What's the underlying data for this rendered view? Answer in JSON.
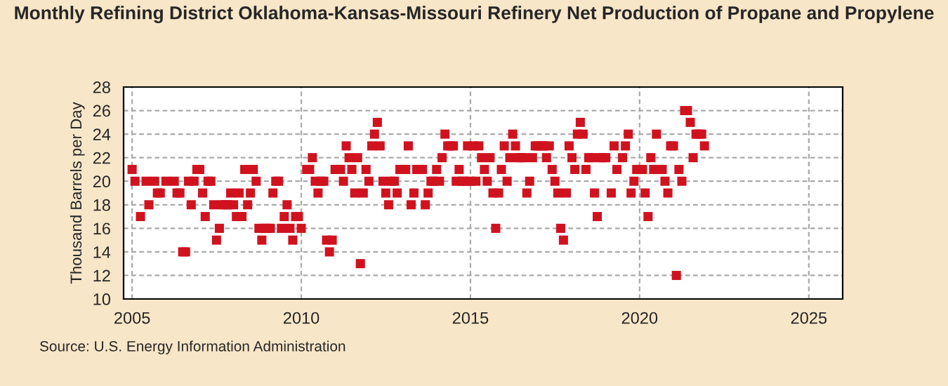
{
  "chart_data": {
    "type": "scatter",
    "title": "Monthly Refining District Oklahoma-Kansas-Missouri Refinery Net Production of Propane and Propylene",
    "ylabel": "Thousand Barrels per Day",
    "annotations": [
      "Source: U.S. Energy Information Administration"
    ],
    "x": [
      "2005-01",
      "2005-02",
      "2005-04",
      "2005-06",
      "2005-07",
      "2005-09",
      "2005-10",
      "2005-11",
      "2006-01",
      "2006-04",
      "2006-05",
      "2006-06",
      "2006-07",
      "2006-08",
      "2006-09",
      "2006-10",
      "2006-11",
      "2006-12",
      "2007-01",
      "2007-02",
      "2007-03",
      "2007-04",
      "2007-05",
      "2007-06",
      "2007-07",
      "2007-08",
      "2007-09",
      "2007-10",
      "2007-11",
      "2007-12",
      "2008-01",
      "2008-02",
      "2008-03",
      "2008-04",
      "2008-05",
      "2008-06",
      "2008-07",
      "2008-08",
      "2008-09",
      "2008-10",
      "2008-11",
      "2008-12",
      "2009-01",
      "2009-02",
      "2009-03",
      "2009-04",
      "2009-05",
      "2009-06",
      "2009-07",
      "2009-08",
      "2009-09",
      "2009-10",
      "2009-11",
      "2009-12",
      "2010-01",
      "2010-03",
      "2010-04",
      "2010-05",
      "2010-06",
      "2010-07",
      "2010-08",
      "2010-09",
      "2010-10",
      "2010-11",
      "2010-12",
      "2011-01",
      "2011-02",
      "2011-03",
      "2011-04",
      "2011-05",
      "2011-06",
      "2011-07",
      "2011-08",
      "2011-09",
      "2011-10",
      "2011-11",
      "2011-12",
      "2012-01",
      "2012-02",
      "2012-03",
      "2012-04",
      "2012-05",
      "2012-06",
      "2012-07",
      "2012-08",
      "2012-09",
      "2012-10",
      "2012-11",
      "2012-12",
      "2013-01",
      "2013-02",
      "2013-03",
      "2013-04",
      "2013-05",
      "2013-06",
      "2013-07",
      "2013-08",
      "2013-09",
      "2013-10",
      "2013-11",
      "2013-12",
      "2014-01",
      "2014-02",
      "2014-03",
      "2014-04",
      "2014-05",
      "2014-06",
      "2014-07",
      "2014-08",
      "2014-09",
      "2014-10",
      "2014-11",
      "2014-12",
      "2015-01",
      "2015-02",
      "2015-03",
      "2015-04",
      "2015-05",
      "2015-06",
      "2015-07",
      "2015-08",
      "2015-09",
      "2015-10",
      "2015-11",
      "2015-12",
      "2016-01",
      "2016-02",
      "2016-03",
      "2016-04",
      "2016-05",
      "2016-06",
      "2016-07",
      "2016-08",
      "2016-09",
      "2016-10",
      "2016-11",
      "2016-12",
      "2017-01",
      "2017-02",
      "2017-03",
      "2017-04",
      "2017-05",
      "2017-06",
      "2017-07",
      "2017-08",
      "2017-09",
      "2017-10",
      "2017-11",
      "2017-12",
      "2018-01",
      "2018-02",
      "2018-03",
      "2018-04",
      "2018-05",
      "2018-06",
      "2018-07",
      "2018-08",
      "2018-09",
      "2018-10",
      "2018-11",
      "2018-12",
      "2019-01",
      "2019-03",
      "2019-04",
      "2019-05",
      "2019-07",
      "2019-08",
      "2019-09",
      "2019-10",
      "2019-11",
      "2019-12",
      "2020-01",
      "2020-02",
      "2020-03",
      "2020-04",
      "2020-05",
      "2020-06",
      "2020-07",
      "2020-08",
      "2020-09",
      "2020-10",
      "2020-11",
      "2020-12",
      "2021-01",
      "2021-02",
      "2021-03",
      "2021-04",
      "2021-05",
      "2021-06",
      "2021-07",
      "2021-08",
      "2021-09",
      "2021-10",
      "2021-11",
      "2021-12"
    ],
    "series": [
      {
        "color": "#d0121f",
        "values": [
          21,
          20,
          17,
          20,
          18,
          20,
          19,
          19,
          20,
          20,
          19,
          19,
          14,
          14,
          20,
          18,
          20,
          21,
          21,
          19,
          17,
          20,
          20,
          18,
          15,
          16,
          18,
          18,
          18,
          19,
          18,
          17,
          19,
          17,
          21,
          18,
          19,
          21,
          20,
          16,
          15,
          16,
          16,
          16,
          19,
          20,
          20,
          16,
          17,
          18,
          16,
          15,
          17,
          17,
          16,
          21,
          21,
          22,
          20,
          19,
          20,
          20,
          15,
          14,
          15,
          21,
          21,
          21,
          20,
          23,
          22,
          21,
          19,
          22,
          13,
          19,
          21,
          20,
          23,
          24,
          25,
          23,
          20,
          19,
          18,
          20,
          20,
          19,
          21,
          21,
          21,
          23,
          18,
          19,
          21,
          21,
          21,
          18,
          19,
          20,
          20,
          21,
          20,
          22,
          24,
          23,
          23,
          23,
          20,
          21,
          20,
          20,
          23,
          20,
          23,
          20,
          23,
          22,
          21,
          20,
          22,
          19,
          16,
          19,
          21,
          23,
          20,
          22,
          24,
          23,
          22,
          22,
          22,
          19,
          20,
          22,
          23,
          23,
          23,
          23,
          22,
          23,
          21,
          20,
          19,
          16,
          15,
          19,
          23,
          22,
          21,
          24,
          25,
          24,
          21,
          22,
          22,
          19,
          17,
          22,
          22,
          22,
          19,
          23,
          21,
          22,
          23,
          24,
          19,
          20,
          21,
          21,
          21,
          19,
          17,
          22,
          21,
          24,
          21,
          21,
          20,
          19,
          23,
          23,
          12,
          21,
          20,
          26,
          26,
          25,
          22,
          24,
          24,
          24,
          23
        ]
      }
    ],
    "marker": "square",
    "xlim": [
      "2004-10",
      "2026-01"
    ],
    "xticks": [
      {
        "value": "2005-01",
        "label": "2005"
      },
      {
        "value": "2010-01",
        "label": "2010"
      },
      {
        "value": "2015-01",
        "label": "2015"
      },
      {
        "value": "2020-01",
        "label": "2020"
      },
      {
        "value": "2025-01",
        "label": "2025"
      }
    ],
    "ylim": [
      10,
      28
    ],
    "yticks": [
      10,
      12,
      14,
      16,
      18,
      20,
      22,
      24,
      26,
      28
    ],
    "grid": true,
    "legend": false
  }
}
